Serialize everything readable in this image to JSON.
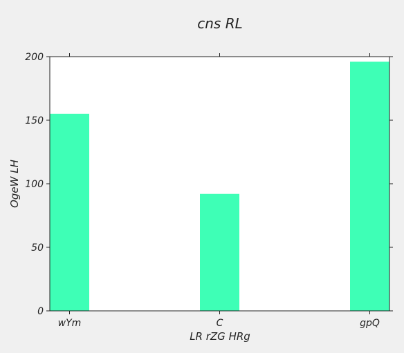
{
  "chart_data": {
    "type": "bar",
    "title": "cns RL",
    "xlabel": "LR rZG  HRg",
    "ylabel": "OgeW LH",
    "categories": [
      "wYm",
      "C",
      "gpQ"
    ],
    "values": [
      155,
      92,
      196
    ],
    "ylim": [
      0,
      200
    ],
    "yticks": [
      0,
      50,
      100,
      150,
      200
    ],
    "grid": false,
    "legend": "none",
    "bar_color": "#3effb6",
    "plot_background": "#ffffff",
    "figure_background": "#f0f0f0"
  }
}
